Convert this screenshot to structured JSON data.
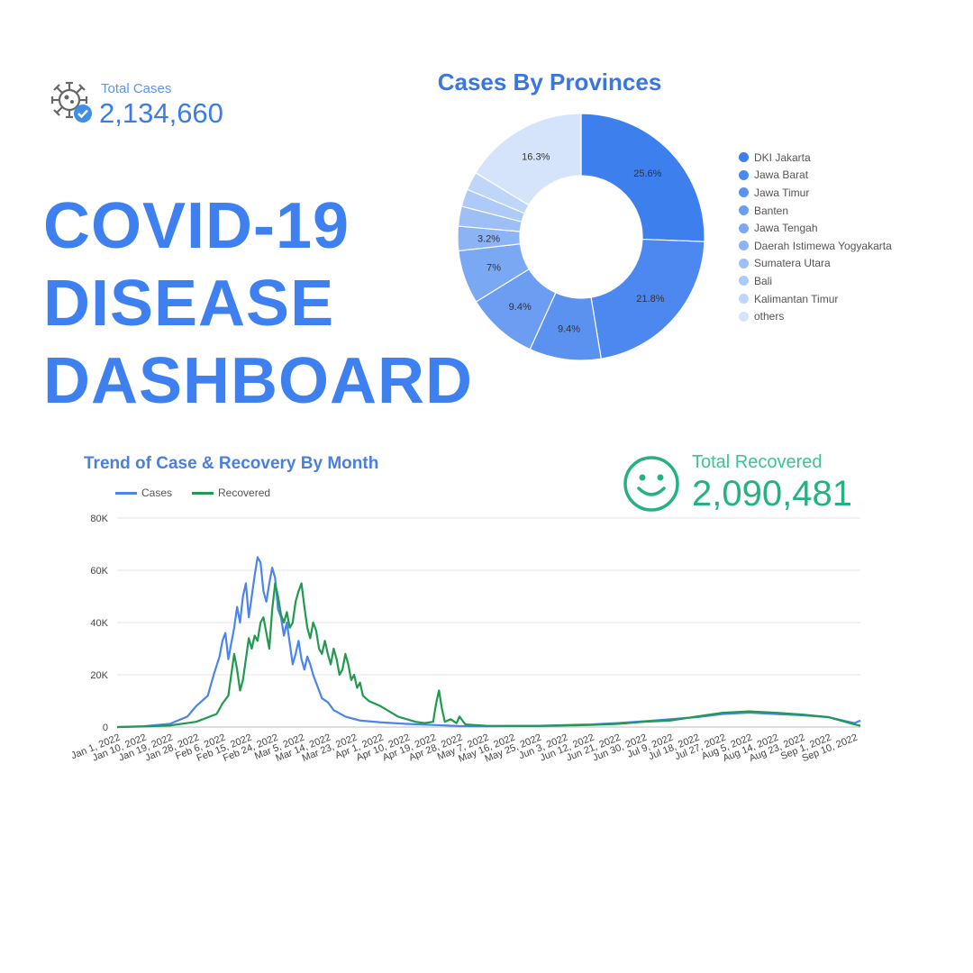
{
  "total_cases": {
    "label": "Total Cases",
    "value": "2,134,660",
    "icon": "virus-icon"
  },
  "title_lines": [
    "COVID-19",
    "DISEASE",
    "DASHBOARD"
  ],
  "total_recovered": {
    "label": "Total Recovered",
    "value": "2,090,481",
    "icon": "smiley-icon"
  },
  "colors": {
    "title": "#3e80ef",
    "cases": "#4a84ec",
    "recovered": "#1f9a4f",
    "recovered_kpi": "#24b283"
  },
  "chart_data": [
    {
      "type": "pie",
      "title": "Cases By Provinces",
      "labels": [
        "DKI Jakarta",
        "Jawa Barat",
        "Jawa Timur",
        "Banten",
        "Jawa Tengah",
        "Daerah Istimewa Yogyakarta",
        "Sumatera Utara",
        "Bali",
        "Kalimantan Timur",
        "others"
      ],
      "values": [
        25.6,
        21.8,
        9.4,
        9.4,
        7,
        3.2,
        2.6,
        2.3,
        2.4,
        16.3
      ],
      "data_labels": [
        "25.6%",
        "21.8%",
        "9.4%",
        "9.4%",
        "7%",
        "3.2%",
        "",
        "",
        "",
        "16.3%"
      ],
      "colors": [
        "#3e7fee",
        "#4c88ef",
        "#5b92f0",
        "#6b9df2",
        "#7ba8f3",
        "#8cb3f5",
        "#9dbff6",
        "#aecaf8",
        "#bfd5f9",
        "#d6e4fb"
      ],
      "legend": "right"
    },
    {
      "type": "line",
      "title": "Trend of Case & Recovery By Month",
      "x_ticks": [
        "Jan 1, 2022",
        "Jan 10, 2022",
        "Jan 19, 2022",
        "Jan 28, 2022",
        "Feb 6, 2022",
        "Feb 15, 2022",
        "Feb 24, 2022",
        "Mar 5, 2022",
        "Mar 14, 2022",
        "Mar 23, 2022",
        "Apr 1, 2022",
        "Apr 10, 2022",
        "Apr 19, 2022",
        "Apr 28, 2022",
        "May 7, 2022",
        "May 16, 2022",
        "May 25, 2022",
        "Jun 3, 2022",
        "Jun 12, 2022",
        "Jun 21, 2022",
        "Jun 30, 2022",
        "Jul 9, 2022",
        "Jul 18, 2022",
        "Jul 27, 2022",
        "Aug 5, 2022",
        "Aug 14, 2022",
        "Aug 23, 2022",
        "Sep 1, 2022",
        "Sep 10, 2022"
      ],
      "y_ticks": [
        "0",
        "20K",
        "40K",
        "60K",
        "80K"
      ],
      "ylim": [
        0,
        80000
      ],
      "grid": true,
      "legend": "top-left",
      "series": [
        {
          "name": "Cases",
          "color": "#4a84ec",
          "points": [
            [
              "Jan 1, 2022",
              0
            ],
            [
              "Jan 10, 2022",
              300
            ],
            [
              "Jan 19, 2022",
              1200
            ],
            [
              "Jan 25, 2022",
              4000
            ],
            [
              "Jan 28, 2022",
              8000
            ],
            [
              "Feb 1, 2022",
              12000
            ],
            [
              "Feb 3, 2022",
              20000
            ],
            [
              "Feb 5, 2022",
              27000
            ],
            [
              "Feb 6, 2022",
              33000
            ],
            [
              "Feb 7, 2022",
              36000
            ],
            [
              "Feb 8, 2022",
              26000
            ],
            [
              "Feb 10, 2022",
              38000
            ],
            [
              "Feb 11, 2022",
              46000
            ],
            [
              "Feb 12, 2022",
              40000
            ],
            [
              "Feb 13, 2022",
              50000
            ],
            [
              "Feb 14, 2022",
              55000
            ],
            [
              "Feb 15, 2022",
              42000
            ],
            [
              "Feb 17, 2022",
              58000
            ],
            [
              "Feb 18, 2022",
              65000
            ],
            [
              "Feb 19, 2022",
              63000
            ],
            [
              "Feb 20, 2022",
              52000
            ],
            [
              "Feb 21, 2022",
              48000
            ],
            [
              "Feb 22, 2022",
              55000
            ],
            [
              "Feb 23, 2022",
              61000
            ],
            [
              "Feb 24, 2022",
              57000
            ],
            [
              "Feb 25, 2022",
              45000
            ],
            [
              "Feb 26, 2022",
              42000
            ],
            [
              "Feb 27, 2022",
              35000
            ],
            [
              "Feb 28, 2022",
              40000
            ],
            [
              "Mar 1, 2022",
              32000
            ],
            [
              "Mar 2, 2022",
              24000
            ],
            [
              "Mar 3, 2022",
              28000
            ],
            [
              "Mar 4, 2022",
              33000
            ],
            [
              "Mar 5, 2022",
              26000
            ],
            [
              "Mar 6, 2022",
              22000
            ],
            [
              "Mar 7, 2022",
              27000
            ],
            [
              "Mar 8, 2022",
              24000
            ],
            [
              "Mar 9, 2022",
              20000
            ],
            [
              "Mar 10, 2022",
              17000
            ],
            [
              "Mar 11, 2022",
              14000
            ],
            [
              "Mar 12, 2022",
              11000
            ],
            [
              "Mar 14, 2022",
              9500
            ],
            [
              "Mar 16, 2022",
              6500
            ],
            [
              "Mar 20, 2022",
              4000
            ],
            [
              "Mar 25, 2022",
              2500
            ],
            [
              "Apr 1, 2022",
              1800
            ],
            [
              "Apr 10, 2022",
              1200
            ],
            [
              "Apr 19, 2022",
              800
            ],
            [
              "Apr 28, 2022",
              400
            ],
            [
              "May 7, 2022",
              300
            ],
            [
              "May 25, 2022",
              500
            ],
            [
              "Jun 12, 2022",
              1000
            ],
            [
              "Jun 21, 2022",
              1500
            ],
            [
              "Jun 30, 2022",
              2200
            ],
            [
              "Jul 9, 2022",
              3000
            ],
            [
              "Jul 18, 2022",
              3800
            ],
            [
              "Jul 27, 2022",
              5000
            ],
            [
              "Aug 5, 2022",
              5500
            ],
            [
              "Aug 14, 2022",
              5000
            ],
            [
              "Aug 23, 2022",
              4500
            ],
            [
              "Sep 1, 2022",
              3800
            ],
            [
              "Sep 10, 2022",
              1500
            ],
            [
              "Sep 12, 2022",
              2500
            ]
          ]
        },
        {
          "name": "Recovered",
          "color": "#1f9a4f",
          "points": [
            [
              "Jan 1, 2022",
              0
            ],
            [
              "Jan 10, 2022",
              200
            ],
            [
              "Jan 19, 2022",
              600
            ],
            [
              "Jan 28, 2022",
              2000
            ],
            [
              "Feb 4, 2022",
              5000
            ],
            [
              "Feb 6, 2022",
              9000
            ],
            [
              "Feb 8, 2022",
              12000
            ],
            [
              "Feb 9, 2022",
              20000
            ],
            [
              "Feb 10, 2022",
              28000
            ],
            [
              "Feb 11, 2022",
              22000
            ],
            [
              "Feb 12, 2022",
              14000
            ],
            [
              "Feb 13, 2022",
              18000
            ],
            [
              "Feb 14, 2022",
              26000
            ],
            [
              "Feb 15, 2022",
              34000
            ],
            [
              "Feb 16, 2022",
              30000
            ],
            [
              "Feb 17, 2022",
              35000
            ],
            [
              "Feb 18, 2022",
              33000
            ],
            [
              "Feb 19, 2022",
              40000
            ],
            [
              "Feb 20, 2022",
              42000
            ],
            [
              "Feb 21, 2022",
              36000
            ],
            [
              "Feb 22, 2022",
              30000
            ],
            [
              "Feb 23, 2022",
              45000
            ],
            [
              "Feb 24, 2022",
              55000
            ],
            [
              "Feb 25, 2022",
              50000
            ],
            [
              "Feb 26, 2022",
              43000
            ],
            [
              "Feb 27, 2022",
              40000
            ],
            [
              "Feb 28, 2022",
              44000
            ],
            [
              "Mar 1, 2022",
              38000
            ],
            [
              "Mar 2, 2022",
              40000
            ],
            [
              "Mar 3, 2022",
              48000
            ],
            [
              "Mar 4, 2022",
              52000
            ],
            [
              "Mar 5, 2022",
              55000
            ],
            [
              "Mar 6, 2022",
              46000
            ],
            [
              "Mar 7, 2022",
              38000
            ],
            [
              "Mar 8, 2022",
              34000
            ],
            [
              "Mar 9, 2022",
              40000
            ],
            [
              "Mar 10, 2022",
              37000
            ],
            [
              "Mar 11, 2022",
              30000
            ],
            [
              "Mar 12, 2022",
              28000
            ],
            [
              "Mar 13, 2022",
              33000
            ],
            [
              "Mar 14, 2022",
              28000
            ],
            [
              "Mar 15, 2022",
              24000
            ],
            [
              "Mar 16, 2022",
              30000
            ],
            [
              "Mar 17, 2022",
              26000
            ],
            [
              "Mar 18, 2022",
              20000
            ],
            [
              "Mar 19, 2022",
              22000
            ],
            [
              "Mar 20, 2022",
              28000
            ],
            [
              "Mar 21, 2022",
              24000
            ],
            [
              "Mar 22, 2022",
              18000
            ],
            [
              "Mar 23, 2022",
              20000
            ],
            [
              "Mar 24, 2022",
              15000
            ],
            [
              "Mar 25, 2022",
              17000
            ],
            [
              "Mar 26, 2022",
              12000
            ],
            [
              "Mar 28, 2022",
              10000
            ],
            [
              "Apr 1, 2022",
              8000
            ],
            [
              "Apr 4, 2022",
              6000
            ],
            [
              "Apr 7, 2022",
              4000
            ],
            [
              "Apr 10, 2022",
              3000
            ],
            [
              "Apr 13, 2022",
              2000
            ],
            [
              "Apr 16, 2022",
              1500
            ],
            [
              "Apr 19, 2022",
              2000
            ],
            [
              "Apr 20, 2022",
              9000
            ],
            [
              "Apr 21, 2022",
              14000
            ],
            [
              "Apr 22, 2022",
              7000
            ],
            [
              "Apr 23, 2022",
              2000
            ],
            [
              "Apr 25, 2022",
              3000
            ],
            [
              "Apr 27, 2022",
              1500
            ],
            [
              "Apr 28, 2022",
              4000
            ],
            [
              "Apr 30, 2022",
              1000
            ],
            [
              "May 7, 2022",
              500
            ],
            [
              "May 25, 2022",
              400
            ],
            [
              "Jun 12, 2022",
              800
            ],
            [
              "Jun 21, 2022",
              1200
            ],
            [
              "Jun 30, 2022",
              2000
            ],
            [
              "Jul 9, 2022",
              2500
            ],
            [
              "Jul 18, 2022",
              4000
            ],
            [
              "Jul 27, 2022",
              5500
            ],
            [
              "Aug 5, 2022",
              6000
            ],
            [
              "Aug 14, 2022",
              5500
            ],
            [
              "Aug 23, 2022",
              4800
            ],
            [
              "Sep 1, 2022",
              3800
            ],
            [
              "Sep 10, 2022",
              1000
            ],
            [
              "Sep 12, 2022",
              500
            ]
          ]
        }
      ]
    }
  ]
}
